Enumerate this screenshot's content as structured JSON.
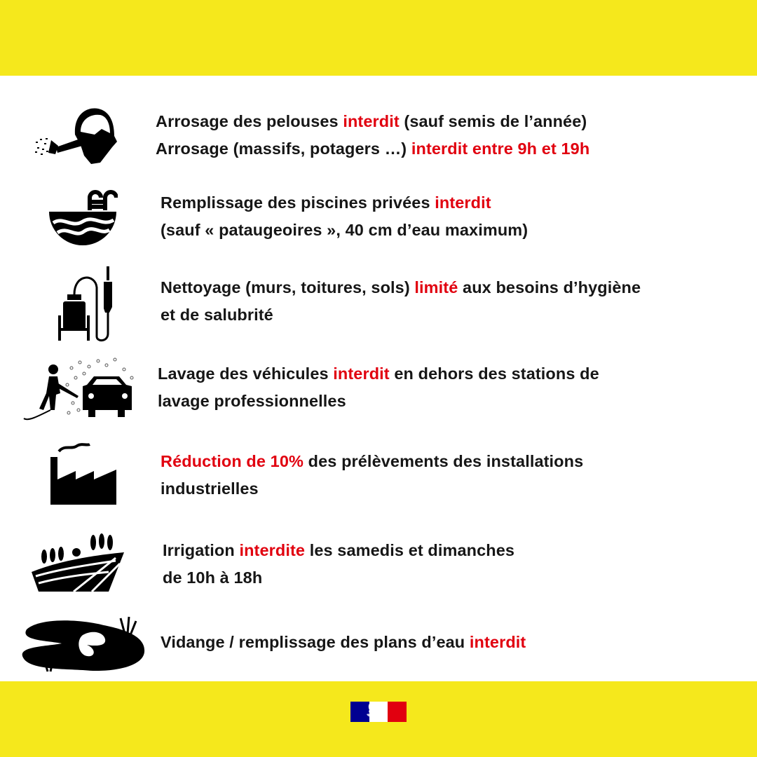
{
  "colors": {
    "band": "#F5E81C",
    "accent_red": "#E1000F",
    "text": "#161616",
    "flag_blue": "#000091",
    "flag_red": "#E1000F"
  },
  "logo": {
    "name": "Marianne government logo (République Française)"
  },
  "items": [
    {
      "icon": "watering-can-icon",
      "lines": [
        [
          {
            "t": "Arrosage des pelouses "
          },
          {
            "t": "interdit",
            "red": true
          },
          {
            "t": " (sauf semis de l’année)"
          }
        ],
        [
          {
            "t": "Arrosage (massifs, potagers …) "
          },
          {
            "t": "interdit entre 9h et 19h",
            "red": true
          }
        ]
      ]
    },
    {
      "icon": "swimming-pool-icon",
      "lines": [
        [
          {
            "t": "Remplissage des piscines privées "
          },
          {
            "t": "interdit",
            "red": true
          }
        ],
        [
          {
            "t": "(sauf « pataugeoires », 40 cm d’eau maximum)"
          }
        ]
      ]
    },
    {
      "icon": "pressure-washer-icon",
      "lines": [
        [
          {
            "t": "Nettoyage (murs, toitures, sols) "
          },
          {
            "t": "limité",
            "red": true
          },
          {
            "t": " aux besoins d’hygiène"
          }
        ],
        [
          {
            "t": "et de salubrité"
          }
        ]
      ]
    },
    {
      "icon": "car-wash-icon",
      "lines": [
        [
          {
            "t": "Lavage des véhicules "
          },
          {
            "t": "interdit",
            "red": true
          },
          {
            "t": " en dehors des stations de"
          }
        ],
        [
          {
            "t": "lavage professionnelles"
          }
        ]
      ]
    },
    {
      "icon": "factory-icon",
      "lines": [
        [
          {
            "t": "Réduction de 10%",
            "red": true
          },
          {
            "t": " des prélèvements des installations"
          }
        ],
        [
          {
            "t": "industrielles"
          }
        ]
      ]
    },
    {
      "icon": "irrigated-fields-icon",
      "lines": [
        [
          {
            "t": "Irrigation "
          },
          {
            "t": "interdite",
            "red": true
          },
          {
            "t": " les samedis et dimanches"
          }
        ],
        [
          {
            "t": "de 10h à 18h"
          }
        ]
      ]
    },
    {
      "icon": "pond-icon",
      "lines": [
        [
          {
            "t": "Vidange / remplissage des plans d’eau "
          },
          {
            "t": "interdit",
            "red": true
          }
        ]
      ]
    }
  ]
}
